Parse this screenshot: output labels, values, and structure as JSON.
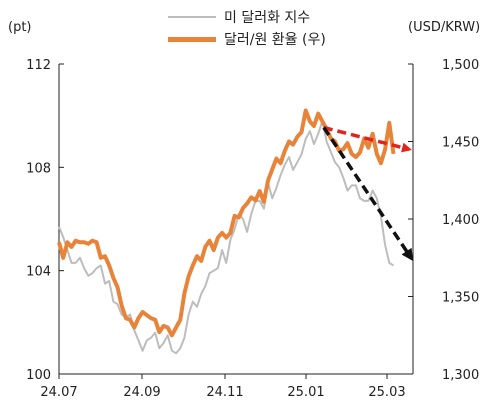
{
  "chart_data": {
    "type": "line",
    "left_unit": "(pt)",
    "right_unit": "(USD/KRW)",
    "x_tick_labels": [
      "24.07",
      "24.09",
      "24.11",
      "25.01",
      "25.03"
    ],
    "y_left": {
      "range": [
        100,
        112
      ],
      "ticks": [
        "100",
        "104",
        "108",
        "112"
      ]
    },
    "y_right": {
      "range": [
        1300,
        1500
      ],
      "ticks": [
        "1,300",
        "1,350",
        "1,400",
        "1,450",
        "1,500"
      ]
    },
    "colors": {
      "dxy": "#bdbdbd",
      "usdkrw": "#e8833a",
      "trend_red": "#e0251b",
      "trend_black": "#111111"
    },
    "series": [
      {
        "name": "미 달러화 지수",
        "axis": "left",
        "points": [
          [
            0,
            105.7
          ],
          [
            3,
            105.3
          ],
          [
            6,
            104.8
          ],
          [
            9,
            104.3
          ],
          [
            12,
            104.3
          ],
          [
            15,
            104.5
          ],
          [
            18,
            104.1
          ],
          [
            21,
            103.8
          ],
          [
            24,
            103.9
          ],
          [
            27,
            104.1
          ],
          [
            30,
            104.2
          ],
          [
            33,
            103.5
          ],
          [
            36,
            103.6
          ],
          [
            39,
            102.8
          ],
          [
            42,
            102.7
          ],
          [
            45,
            102.3
          ],
          [
            48,
            102.2
          ],
          [
            51,
            102.3
          ],
          [
            54,
            101.7
          ],
          [
            57,
            101.3
          ],
          [
            60,
            100.9
          ],
          [
            63,
            101.3
          ],
          [
            66,
            101.4
          ],
          [
            69,
            101.6
          ],
          [
            72,
            101.0
          ],
          [
            75,
            101.2
          ],
          [
            78,
            101.5
          ],
          [
            81,
            100.9
          ],
          [
            84,
            100.8
          ],
          [
            87,
            101.0
          ],
          [
            90,
            101.4
          ],
          [
            93,
            102.3
          ],
          [
            96,
            102.8
          ],
          [
            99,
            102.6
          ],
          [
            102,
            103.1
          ],
          [
            105,
            103.4
          ],
          [
            108,
            103.9
          ],
          [
            111,
            104.0
          ],
          [
            114,
            104.1
          ],
          [
            117,
            104.8
          ],
          [
            120,
            104.3
          ],
          [
            123,
            105.2
          ],
          [
            126,
            105.6
          ],
          [
            129,
            106.2
          ],
          [
            132,
            106.0
          ],
          [
            135,
            105.5
          ],
          [
            138,
            106.2
          ],
          [
            141,
            106.7
          ],
          [
            144,
            106.7
          ],
          [
            147,
            106.4
          ],
          [
            150,
            107.4
          ],
          [
            153,
            106.8
          ],
          [
            156,
            107.2
          ],
          [
            159,
            107.7
          ],
          [
            162,
            108.1
          ],
          [
            165,
            108.4
          ],
          [
            168,
            107.9
          ],
          [
            171,
            108.2
          ],
          [
            174,
            108.5
          ],
          [
            177,
            109.1
          ],
          [
            180,
            109.4
          ],
          [
            183,
            108.9
          ],
          [
            186,
            109.3
          ],
          [
            189,
            109.8
          ],
          [
            192,
            109.0
          ],
          [
            195,
            108.6
          ],
          [
            198,
            108.2
          ],
          [
            201,
            108.0
          ],
          [
            204,
            107.6
          ],
          [
            207,
            107.1
          ],
          [
            210,
            107.3
          ],
          [
            213,
            107.3
          ],
          [
            216,
            106.8
          ],
          [
            219,
            106.7
          ],
          [
            222,
            106.7
          ],
          [
            225,
            107.1
          ],
          [
            228,
            106.8
          ],
          [
            231,
            106.1
          ],
          [
            234,
            105.0
          ],
          [
            237,
            104.3
          ],
          [
            240,
            104.2
          ]
        ]
      },
      {
        "name": "달러/원 환율 (우)",
        "axis": "right",
        "points": [
          [
            0,
            1385
          ],
          [
            3,
            1375
          ],
          [
            6,
            1385
          ],
          [
            9,
            1382
          ],
          [
            12,
            1386
          ],
          [
            15,
            1385
          ],
          [
            18,
            1385
          ],
          [
            21,
            1384
          ],
          [
            24,
            1386
          ],
          [
            27,
            1385
          ],
          [
            30,
            1375
          ],
          [
            33,
            1376
          ],
          [
            36,
            1370
          ],
          [
            39,
            1362
          ],
          [
            42,
            1356
          ],
          [
            45,
            1344
          ],
          [
            48,
            1336
          ],
          [
            51,
            1335
          ],
          [
            54,
            1330
          ],
          [
            57,
            1336
          ],
          [
            60,
            1340
          ],
          [
            63,
            1338
          ],
          [
            66,
            1336
          ],
          [
            69,
            1335
          ],
          [
            72,
            1327
          ],
          [
            75,
            1331
          ],
          [
            78,
            1330
          ],
          [
            81,
            1325
          ],
          [
            84,
            1330
          ],
          [
            87,
            1335
          ],
          [
            90,
            1352
          ],
          [
            93,
            1363
          ],
          [
            96,
            1370
          ],
          [
            99,
            1376
          ],
          [
            102,
            1373
          ],
          [
            105,
            1382
          ],
          [
            108,
            1386
          ],
          [
            111,
            1380
          ],
          [
            114,
            1388
          ],
          [
            117,
            1391
          ],
          [
            120,
            1388
          ],
          [
            123,
            1391
          ],
          [
            126,
            1402
          ],
          [
            129,
            1401
          ],
          [
            132,
            1407
          ],
          [
            135,
            1410
          ],
          [
            138,
            1414
          ],
          [
            141,
            1412
          ],
          [
            144,
            1418
          ],
          [
            147,
            1411
          ],
          [
            150,
            1425
          ],
          [
            153,
            1432
          ],
          [
            156,
            1439
          ],
          [
            159,
            1436
          ],
          [
            162,
            1444
          ],
          [
            165,
            1450
          ],
          [
            168,
            1448
          ],
          [
            171,
            1453
          ],
          [
            174,
            1456
          ],
          [
            177,
            1470
          ],
          [
            180,
            1463
          ],
          [
            183,
            1460
          ],
          [
            186,
            1468
          ],
          [
            189,
            1463
          ],
          [
            192,
            1458
          ],
          [
            195,
            1452
          ],
          [
            198,
            1450
          ],
          [
            201,
            1444
          ],
          [
            204,
            1445
          ],
          [
            207,
            1449
          ],
          [
            210,
            1442
          ],
          [
            213,
            1440
          ],
          [
            216,
            1443
          ],
          [
            219,
            1452
          ],
          [
            222,
            1446
          ],
          [
            225,
            1455
          ],
          [
            228,
            1442
          ],
          [
            231,
            1436
          ],
          [
            234,
            1445
          ],
          [
            237,
            1462
          ],
          [
            240,
            1442
          ]
        ]
      }
    ],
    "trend_arrows": [
      {
        "name": "red-trend-arrow",
        "axis": "right",
        "from": [
          190,
          1459
        ],
        "to": [
          254,
          1445
        ],
        "dashed": true
      },
      {
        "name": "black-trend-arrow",
        "axis": "right",
        "from": [
          190,
          1459
        ],
        "to": [
          254,
          1375
        ],
        "dashed": true
      }
    ]
  }
}
